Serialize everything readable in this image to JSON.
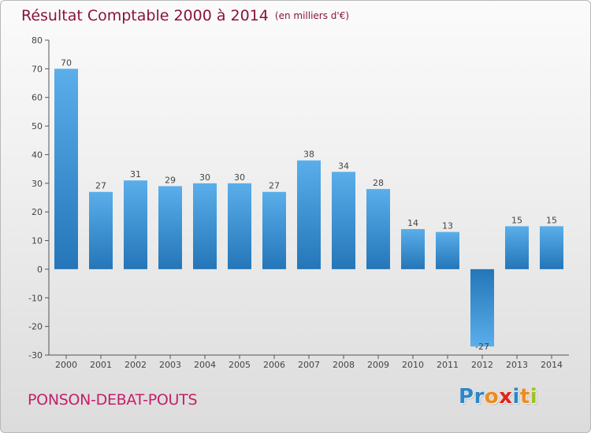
{
  "header": {
    "title": "Résultat Comptable 2000 à 2014",
    "subtitle": "(en milliers d'€)"
  },
  "footer": {
    "town": "PONSON-DEBAT-POUTS",
    "brand_letters": [
      {
        "char": "P",
        "color": "#2b87c8"
      },
      {
        "char": "r",
        "color": "#2b87c8"
      },
      {
        "char": "o",
        "color": "#f08a1c"
      },
      {
        "char": "x",
        "color": "#e2231a"
      },
      {
        "char": "i",
        "color": "#2b87c8"
      },
      {
        "char": "t",
        "color": "#f08a1c"
      },
      {
        "char": "i",
        "color": "#9ec31e"
      }
    ]
  },
  "colors": {
    "bar_top": "#5aaeea",
    "bar_bottom": "#2476b8",
    "title": "#8a1240",
    "town": "#c41f6b"
  },
  "chart_data": {
    "type": "bar",
    "categories": [
      "2000",
      "2001",
      "2002",
      "2003",
      "2004",
      "2005",
      "2006",
      "2007",
      "2008",
      "2009",
      "2010",
      "2011",
      "2012",
      "2013",
      "2014"
    ],
    "values": [
      70,
      27,
      31,
      29,
      30,
      30,
      27,
      38,
      34,
      28,
      14,
      13,
      -27,
      15,
      15
    ],
    "title": "Résultat Comptable 2000 à 2014",
    "subtitle": "(en milliers d'€)",
    "xlabel": "",
    "ylabel": "",
    "ylim": [
      -30,
      80
    ],
    "yticks": [
      80,
      70,
      60,
      50,
      40,
      30,
      20,
      10,
      0,
      -10,
      -20,
      -30
    ],
    "grid": false,
    "legend": "none",
    "data_labels": true
  }
}
